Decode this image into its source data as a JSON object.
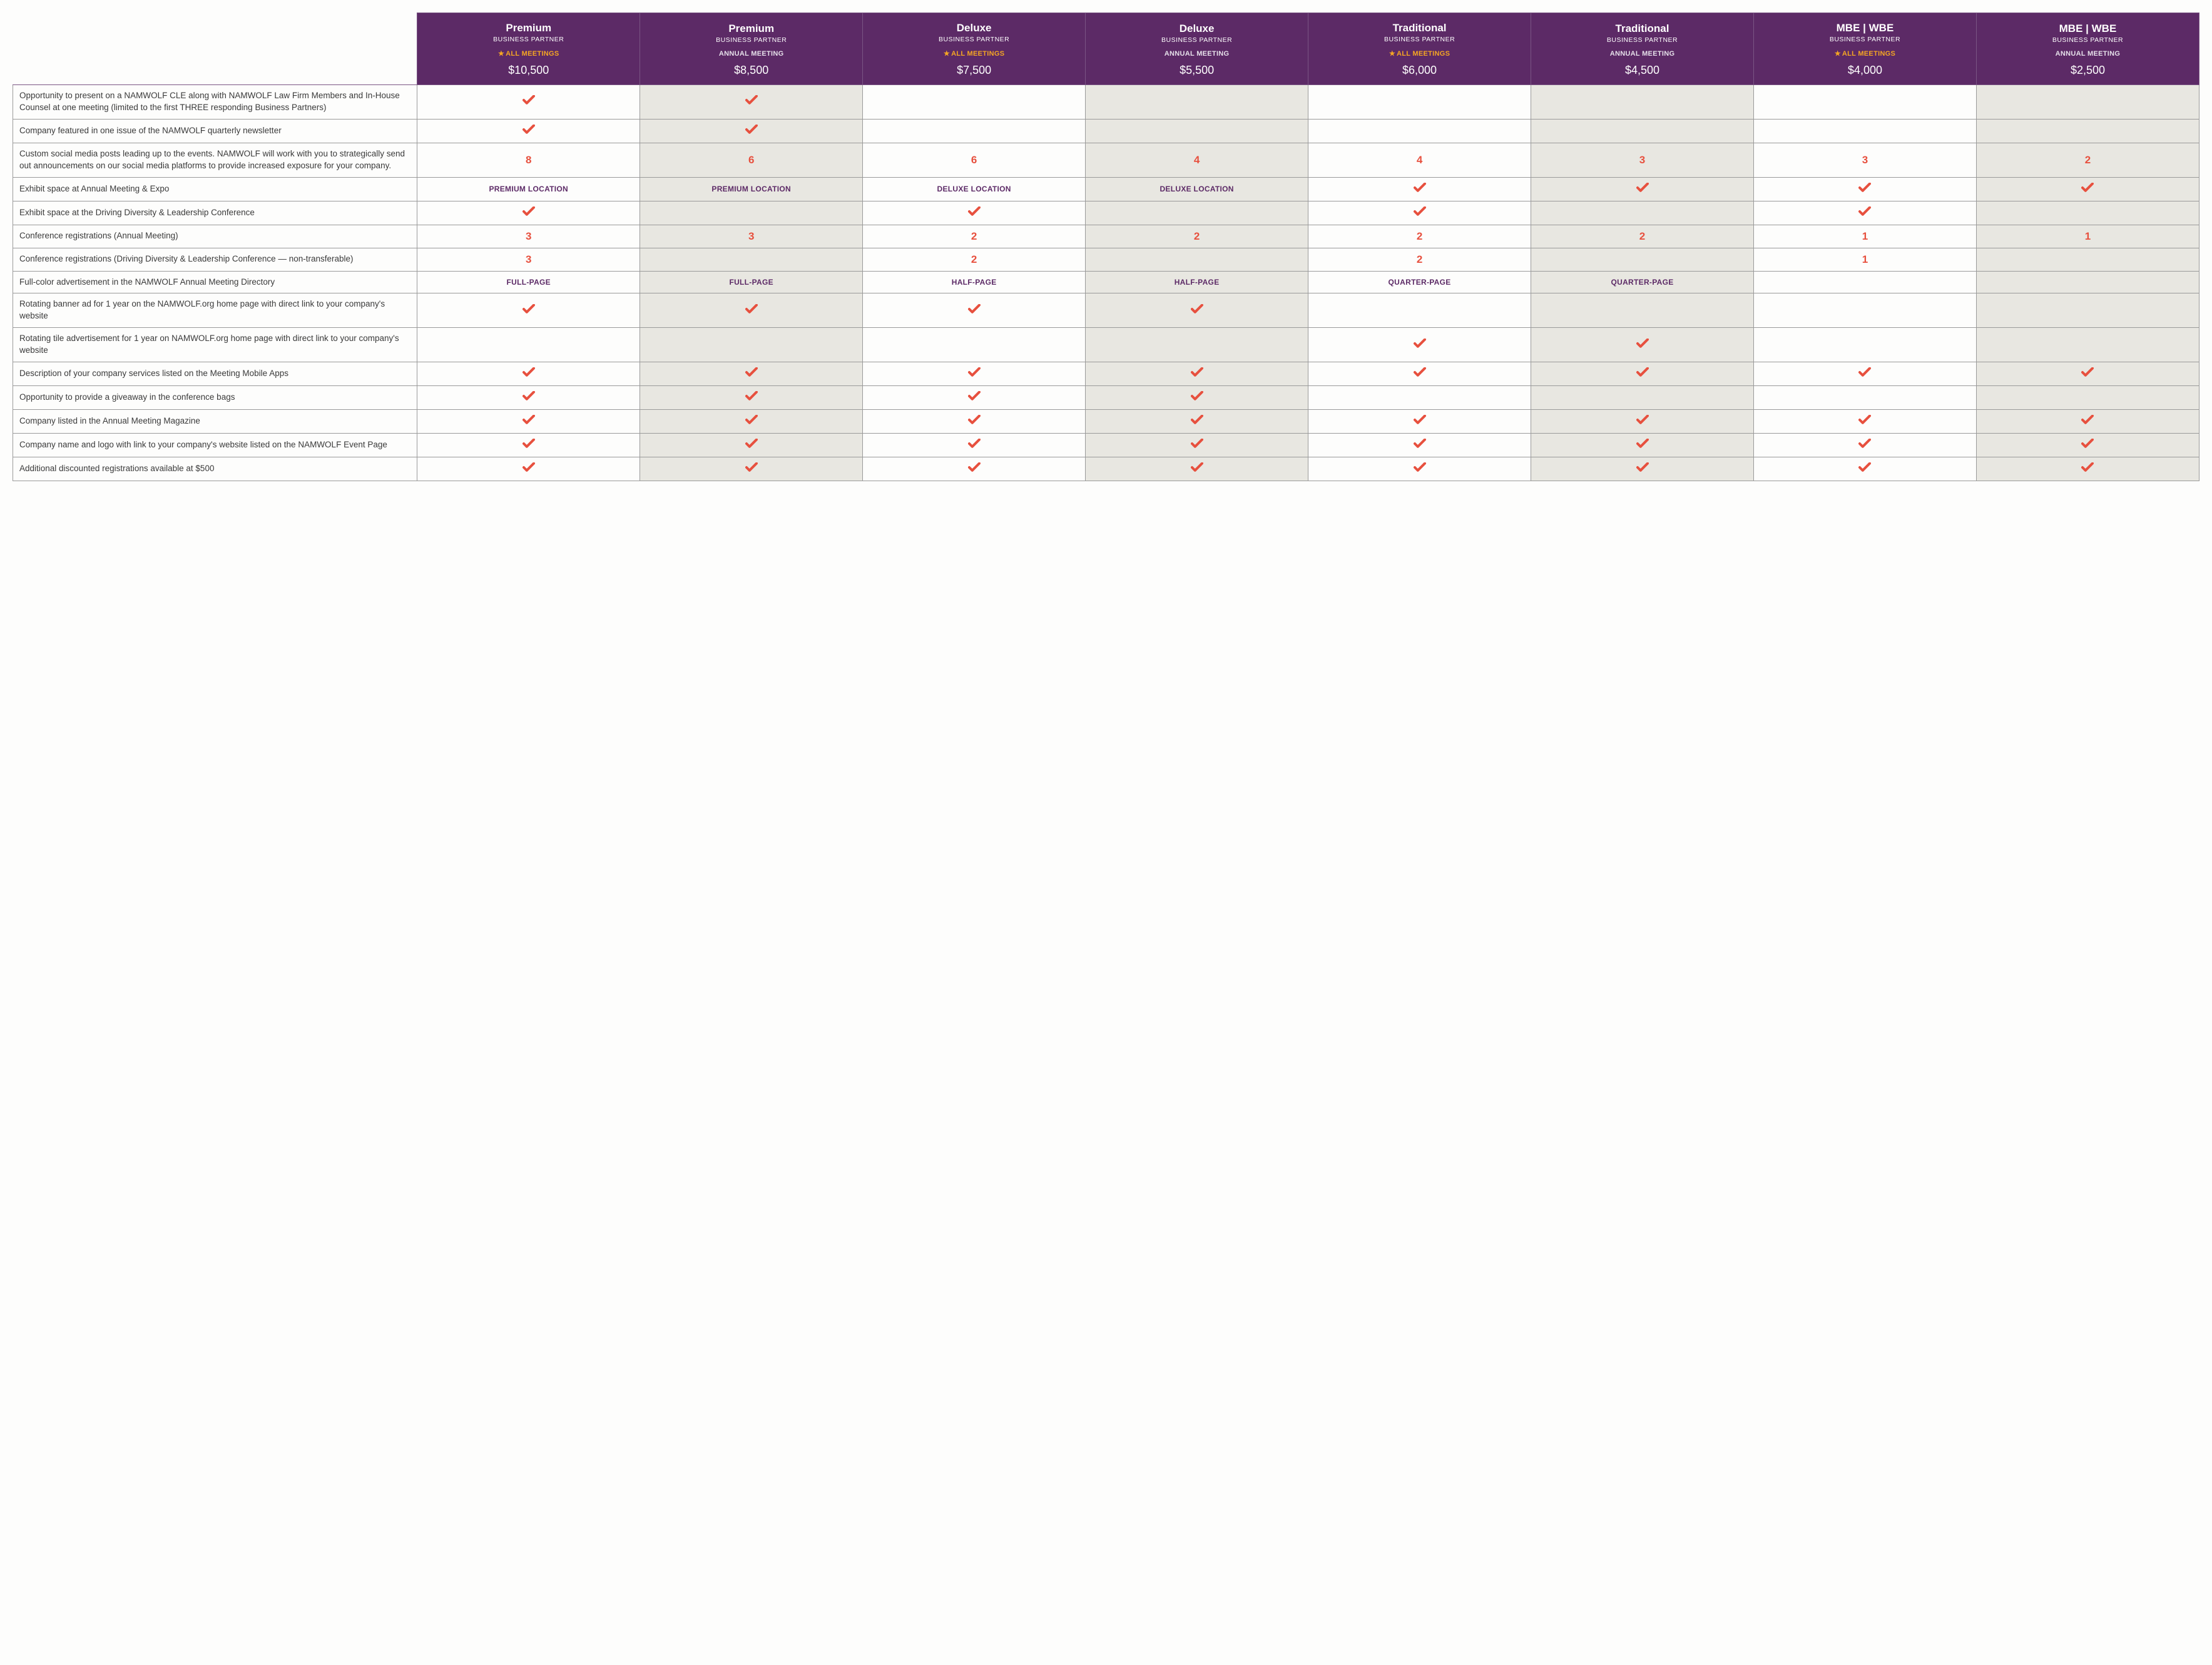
{
  "colors": {
    "header_bg": "#5c2a66",
    "header_border": "#7a5584",
    "body_border": "#9a9a9a",
    "shade_bg": "#e8e7e1",
    "accent_orange": "#e7503e",
    "accent_purple": "#5c2a66",
    "star_gold": "#f5a623",
    "page_bg": "#fdfdfc"
  },
  "badges": {
    "all_meetings": "ALL MEETINGS",
    "annual_meeting": "ANNUAL MEETING"
  },
  "tiers": [
    {
      "name": "Premium",
      "sub": "BUSINESS PARTNER",
      "badge": "star",
      "price": "$10,500"
    },
    {
      "name": "Premium",
      "sub": "BUSINESS PARTNER",
      "badge": "ann",
      "price": "$8,500"
    },
    {
      "name": "Deluxe",
      "sub": "BUSINESS PARTNER",
      "badge": "star",
      "price": "$7,500"
    },
    {
      "name": "Deluxe",
      "sub": "BUSINESS PARTNER",
      "badge": "ann",
      "price": "$5,500"
    },
    {
      "name": "Traditional",
      "sub": "BUSINESS PARTNER",
      "badge": "star",
      "price": "$6,000"
    },
    {
      "name": "Traditional",
      "sub": "BUSINESS PARTNER",
      "badge": "ann",
      "price": "$4,500"
    },
    {
      "name": "MBE | WBE",
      "sub": "BUSINESS PARTNER",
      "badge": "star",
      "price": "$4,000"
    },
    {
      "name": "MBE | WBE",
      "sub": "BUSINESS PARTNER",
      "badge": "ann",
      "price": "$2,500"
    }
  ],
  "features": [
    {
      "label": "Opportunity to present on a NAMWOLF CLE along with NAMWOLF Law Firm Members and In-House Counsel at one meeting (limited to the first THREE responding Business Partners)",
      "cells": [
        {
          "t": "check"
        },
        {
          "t": "check"
        },
        {
          "t": ""
        },
        {
          "t": ""
        },
        {
          "t": ""
        },
        {
          "t": ""
        },
        {
          "t": ""
        },
        {
          "t": ""
        }
      ]
    },
    {
      "label": "Company featured in one issue of the NAMWOLF quarterly newsletter",
      "cells": [
        {
          "t": "check"
        },
        {
          "t": "check"
        },
        {
          "t": ""
        },
        {
          "t": ""
        },
        {
          "t": ""
        },
        {
          "t": ""
        },
        {
          "t": ""
        },
        {
          "t": ""
        }
      ]
    },
    {
      "label": "Custom social media posts leading up to the events. NAMWOLF will work with you to strategically send out announcements on our social media platforms to provide increased exposure for your company.",
      "cells": [
        {
          "t": "num",
          "v": "8"
        },
        {
          "t": "num",
          "v": "6"
        },
        {
          "t": "num",
          "v": "6"
        },
        {
          "t": "num",
          "v": "4"
        },
        {
          "t": "num",
          "v": "4"
        },
        {
          "t": "num",
          "v": "3"
        },
        {
          "t": "num",
          "v": "3"
        },
        {
          "t": "num",
          "v": "2"
        }
      ]
    },
    {
      "label": "Exhibit space at Annual Meeting & Expo",
      "cells": [
        {
          "t": "ptxt",
          "v": "PREMIUM LOCATION"
        },
        {
          "t": "ptxt",
          "v": "PREMIUM LOCATION"
        },
        {
          "t": "ptxt",
          "v": "DELUXE LOCATION"
        },
        {
          "t": "ptxt",
          "v": "DELUXE LOCATION"
        },
        {
          "t": "check"
        },
        {
          "t": "check"
        },
        {
          "t": "check"
        },
        {
          "t": "check"
        }
      ]
    },
    {
      "label": "Exhibit space at the Driving Diversity & Leadership Conference",
      "cells": [
        {
          "t": "check"
        },
        {
          "t": ""
        },
        {
          "t": "check"
        },
        {
          "t": ""
        },
        {
          "t": "check"
        },
        {
          "t": ""
        },
        {
          "t": "check"
        },
        {
          "t": ""
        }
      ]
    },
    {
      "label": "Conference registrations (Annual Meeting)",
      "cells": [
        {
          "t": "num",
          "v": "3"
        },
        {
          "t": "num",
          "v": "3"
        },
        {
          "t": "num",
          "v": "2"
        },
        {
          "t": "num",
          "v": "2"
        },
        {
          "t": "num",
          "v": "2"
        },
        {
          "t": "num",
          "v": "2"
        },
        {
          "t": "num",
          "v": "1"
        },
        {
          "t": "num",
          "v": "1"
        }
      ]
    },
    {
      "label": "Conference registrations (Driving Diversity & Leadership Conference — non-transferable)",
      "cells": [
        {
          "t": "num",
          "v": "3"
        },
        {
          "t": ""
        },
        {
          "t": "num",
          "v": "2"
        },
        {
          "t": ""
        },
        {
          "t": "num",
          "v": "2"
        },
        {
          "t": ""
        },
        {
          "t": "num",
          "v": "1"
        },
        {
          "t": ""
        }
      ]
    },
    {
      "label": "Full-color advertisement in the NAMWOLF Annual Meeting Directory",
      "cells": [
        {
          "t": "ptxt",
          "v": "FULL-PAGE"
        },
        {
          "t": "ptxt",
          "v": "FULL-PAGE"
        },
        {
          "t": "ptxt",
          "v": "HALF-PAGE"
        },
        {
          "t": "ptxt",
          "v": "HALF-PAGE"
        },
        {
          "t": "ptxt",
          "v": "QUARTER-PAGE"
        },
        {
          "t": "ptxt",
          "v": "QUARTER-PAGE"
        },
        {
          "t": ""
        },
        {
          "t": ""
        }
      ]
    },
    {
      "label": "Rotating banner ad for 1 year on the NAMWOLF.org home page with direct link to your company's website",
      "cells": [
        {
          "t": "check"
        },
        {
          "t": "check"
        },
        {
          "t": "check"
        },
        {
          "t": "check"
        },
        {
          "t": ""
        },
        {
          "t": ""
        },
        {
          "t": ""
        },
        {
          "t": ""
        }
      ]
    },
    {
      "label": "Rotating tile advertisement for 1 year on NAMWOLF.org home page with direct link to your company's website",
      "cells": [
        {
          "t": ""
        },
        {
          "t": ""
        },
        {
          "t": ""
        },
        {
          "t": ""
        },
        {
          "t": "check"
        },
        {
          "t": "check"
        },
        {
          "t": ""
        },
        {
          "t": ""
        }
      ]
    },
    {
      "label": "Description of your company services listed on the Meeting Mobile Apps",
      "cells": [
        {
          "t": "check"
        },
        {
          "t": "check"
        },
        {
          "t": "check"
        },
        {
          "t": "check"
        },
        {
          "t": "check"
        },
        {
          "t": "check"
        },
        {
          "t": "check"
        },
        {
          "t": "check"
        }
      ]
    },
    {
      "label": "Opportunity to provide a giveaway in the conference bags",
      "cells": [
        {
          "t": "check"
        },
        {
          "t": "check"
        },
        {
          "t": "check"
        },
        {
          "t": "check"
        },
        {
          "t": ""
        },
        {
          "t": ""
        },
        {
          "t": ""
        },
        {
          "t": ""
        }
      ]
    },
    {
      "label": "Company listed in the Annual Meeting Magazine",
      "cells": [
        {
          "t": "check"
        },
        {
          "t": "check"
        },
        {
          "t": "check"
        },
        {
          "t": "check"
        },
        {
          "t": "check"
        },
        {
          "t": "check"
        },
        {
          "t": "check"
        },
        {
          "t": "check"
        }
      ]
    },
    {
      "label": "Company name and logo with link to your company's website listed on the NAMWOLF Event Page",
      "cells": [
        {
          "t": "check"
        },
        {
          "t": "check"
        },
        {
          "t": "check"
        },
        {
          "t": "check"
        },
        {
          "t": "check"
        },
        {
          "t": "check"
        },
        {
          "t": "check"
        },
        {
          "t": "check"
        }
      ]
    },
    {
      "label": "Additional discounted registrations available at $500",
      "cells": [
        {
          "t": "check"
        },
        {
          "t": "check"
        },
        {
          "t": "check"
        },
        {
          "t": "check"
        },
        {
          "t": "check"
        },
        {
          "t": "check"
        },
        {
          "t": "check"
        },
        {
          "t": "check"
        }
      ]
    }
  ]
}
